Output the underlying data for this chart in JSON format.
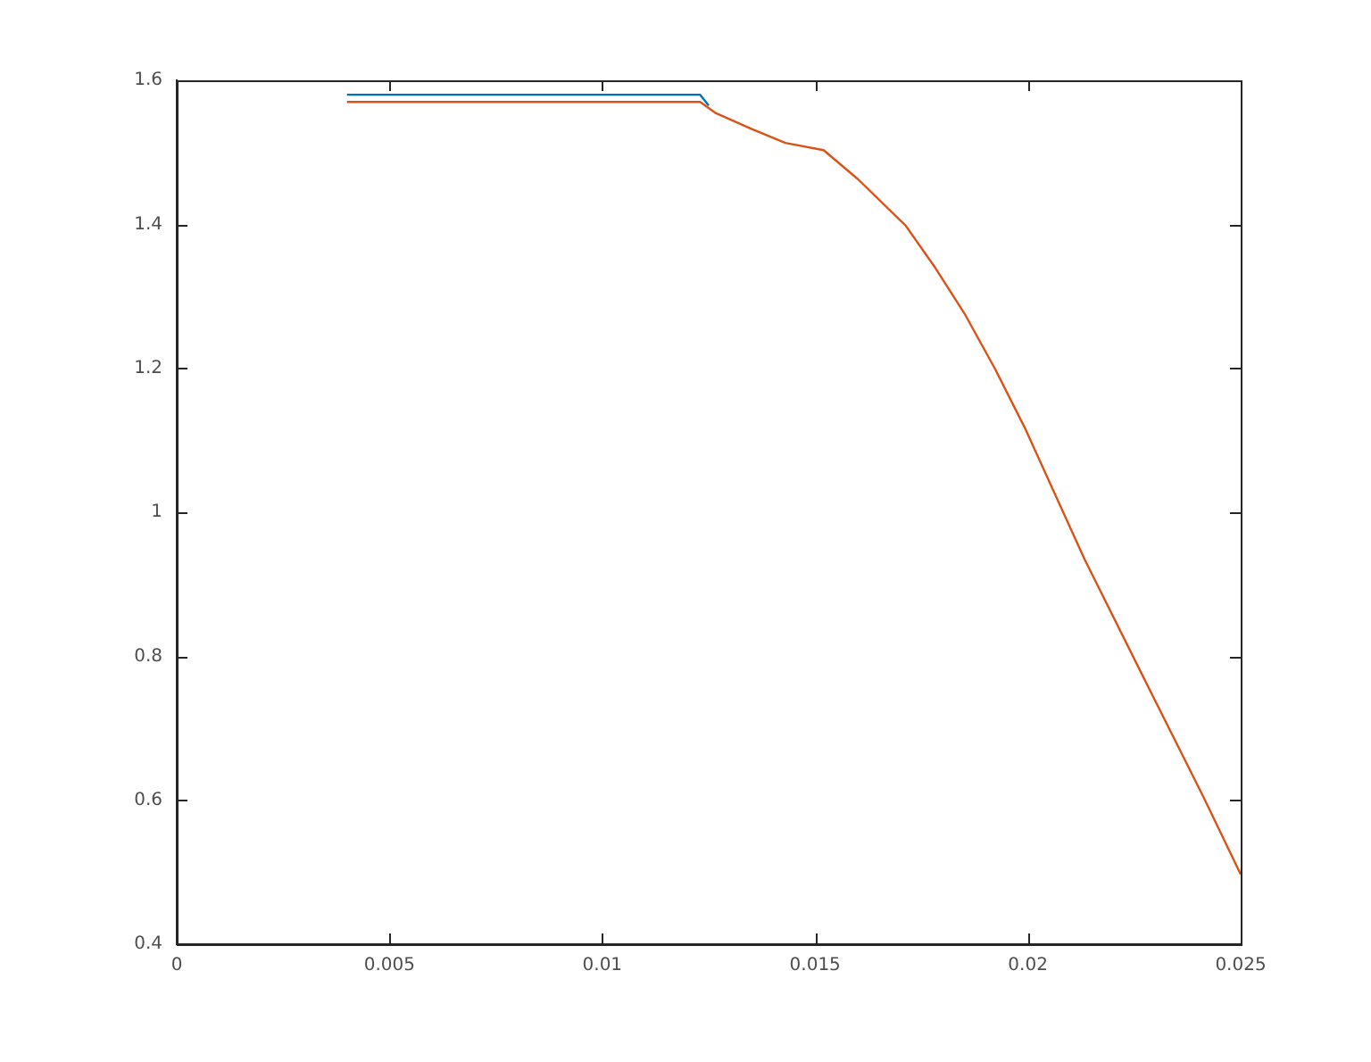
{
  "chart_data": {
    "type": "line",
    "xlim": [
      0,
      0.025
    ],
    "xticks": [
      0,
      0.005,
      0.01,
      0.015,
      0.02,
      0.025
    ],
    "ylim": [
      0.4,
      1.6
    ],
    "yticks": [
      0.4,
      0.6,
      0.8,
      1,
      1.2,
      1.4,
      1.6
    ],
    "grid": false,
    "legend": false,
    "marker": "none",
    "line_style": "solid",
    "series": [
      {
        "color": "#0072bd",
        "x": [
          0.004,
          0.0123,
          0.0125
        ],
        "values": [
          1.58,
          1.58,
          1.565
        ]
      },
      {
        "color": "#d95319",
        "x": [
          0.004,
          0.0123,
          0.01265,
          0.01349,
          0.0143,
          0.0152,
          0.016,
          0.01713,
          0.01783,
          0.01853,
          0.01923,
          0.01993,
          0.02133,
          0.02273,
          0.02413,
          0.025
        ],
        "values": [
          1.57,
          1.57,
          1.555,
          1.533,
          1.513,
          1.503,
          1.463,
          1.398,
          1.339,
          1.274,
          1.199,
          1.117,
          0.935,
          0.769,
          0.604,
          0.497
        ]
      }
    ]
  }
}
